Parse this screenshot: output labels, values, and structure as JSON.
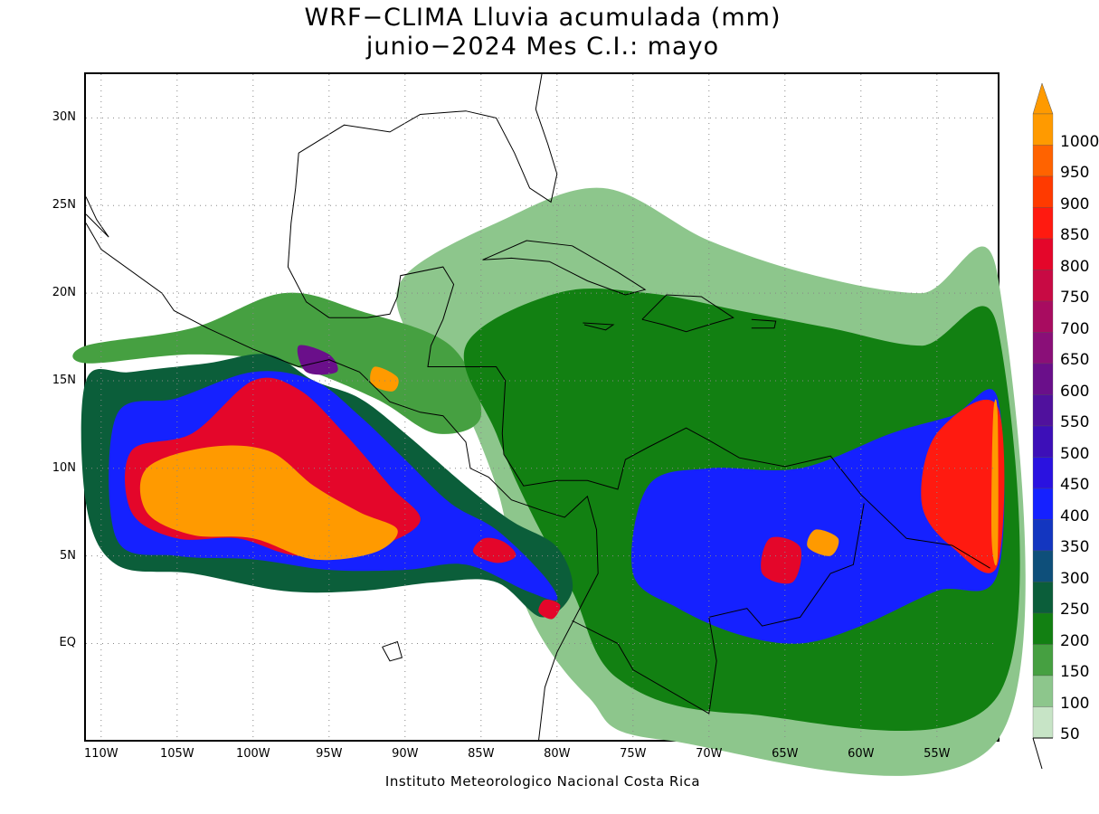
{
  "title": {
    "line1": "WRF−CLIMA Lluvia acumulada (mm)",
    "line2": "junio−2024 Mes C.I.: mayo"
  },
  "credit": "Instituto Meteorologico Nacional Costa Rica",
  "map": {
    "projection": "lat-lon",
    "lon_range": [
      -111,
      -51
    ],
    "lat_range": [
      -5.5,
      32.5
    ],
    "grid": "dotted",
    "lat_ticks": [
      {
        "lat": 30,
        "label": "30N"
      },
      {
        "lat": 25,
        "label": "25N"
      },
      {
        "lat": 20,
        "label": "20N"
      },
      {
        "lat": 15,
        "label": "15N"
      },
      {
        "lat": 10,
        "label": "10N"
      },
      {
        "lat": 5,
        "label": "5N"
      },
      {
        "lat": 0,
        "label": "EQ"
      }
    ],
    "lon_ticks": [
      {
        "lon": -110,
        "label": "110W"
      },
      {
        "lon": -105,
        "label": "105W"
      },
      {
        "lon": -100,
        "label": "100W"
      },
      {
        "lon": -95,
        "label": "95W"
      },
      {
        "lon": -90,
        "label": "90W"
      },
      {
        "lon": -85,
        "label": "85W"
      },
      {
        "lon": -80,
        "label": "80W"
      },
      {
        "lon": -75,
        "label": "75W"
      },
      {
        "lon": -70,
        "label": "70W"
      },
      {
        "lon": -65,
        "label": "65W"
      },
      {
        "lon": -60,
        "label": "60W"
      },
      {
        "lon": -55,
        "label": "55W"
      }
    ]
  },
  "colorbar": {
    "unit": "mm",
    "levels": [
      {
        "label": "50",
        "color": "#c7e4c6"
      },
      {
        "label": "100",
        "color": "#8dc68c"
      },
      {
        "label": "150",
        "color": "#46a041"
      },
      {
        "label": "200",
        "color": "#128012"
      },
      {
        "label": "250",
        "color": "#0b5e3a"
      },
      {
        "label": "300",
        "color": "#0e4f7a"
      },
      {
        "label": "350",
        "color": "#1336c0"
      },
      {
        "label": "400",
        "color": "#1521ff"
      },
      {
        "label": "450",
        "color": "#2a12e0"
      },
      {
        "label": "500",
        "color": "#3d0fb8"
      },
      {
        "label": "550",
        "color": "#50119d"
      },
      {
        "label": "600",
        "color": "#6a0f8a"
      },
      {
        "label": "650",
        "color": "#8a0f78"
      },
      {
        "label": "700",
        "color": "#a80c60"
      },
      {
        "label": "750",
        "color": "#c80a44"
      },
      {
        "label": "800",
        "color": "#e4062a"
      },
      {
        "label": "850",
        "color": "#ff1a10"
      },
      {
        "label": "900",
        "color": "#ff3a00"
      },
      {
        "label": "950",
        "color": "#ff6300"
      },
      {
        "label": "1000",
        "color": "#ff9a00"
      }
    ]
  },
  "rain_fields": [
    {
      "name": "itcz-pacific-outer",
      "level": 4,
      "points": [
        [
          -111,
          15
        ],
        [
          -108,
          15.5
        ],
        [
          -103,
          16
        ],
        [
          -99,
          16.5
        ],
        [
          -96,
          15
        ],
        [
          -93,
          14
        ],
        [
          -90,
          12
        ],
        [
          -86,
          9
        ],
        [
          -83,
          7
        ],
        [
          -80,
          5.5
        ],
        [
          -79,
          3
        ],
        [
          -81,
          1.5
        ],
        [
          -84,
          3.5
        ],
        [
          -88,
          3.5
        ],
        [
          -93,
          3
        ],
        [
          -98,
          3
        ],
        [
          -104,
          4
        ],
        [
          -109,
          4.5
        ],
        [
          -111,
          8
        ]
      ]
    },
    {
      "name": "itcz-pacific-blue",
      "level": 7,
      "points": [
        [
          -109,
          13
        ],
        [
          -105,
          14
        ],
        [
          -100,
          15.5
        ],
        [
          -96,
          15
        ],
        [
          -93,
          13
        ],
        [
          -90,
          10.5
        ],
        [
          -87,
          8
        ],
        [
          -84,
          6.5
        ],
        [
          -81,
          4
        ],
        [
          -80,
          2.5
        ],
        [
          -82,
          3
        ],
        [
          -86,
          4.5
        ],
        [
          -90,
          4.2
        ],
        [
          -95,
          4.2
        ],
        [
          -100,
          4.8
        ],
        [
          -105,
          5
        ],
        [
          -109,
          6
        ]
      ]
    },
    {
      "name": "itcz-pacific-red",
      "level": 15,
      "points": [
        [
          -108,
          11
        ],
        [
          -104,
          12
        ],
        [
          -100,
          15
        ],
        [
          -97,
          14.5
        ],
        [
          -94,
          12
        ],
        [
          -91,
          9
        ],
        [
          -89,
          7
        ],
        [
          -92,
          5.5
        ],
        [
          -97,
          5
        ],
        [
          -101,
          6
        ],
        [
          -105,
          6
        ],
        [
          -108,
          7.5
        ]
      ]
    },
    {
      "name": "itcz-pacific-orange",
      "level": 19,
      "points": [
        [
          -107,
          10
        ],
        [
          -103,
          11.2
        ],
        [
          -99,
          11
        ],
        [
          -96,
          9
        ],
        [
          -93,
          7.5
        ],
        [
          -90.5,
          6.5
        ],
        [
          -92,
          5.2
        ],
        [
          -96,
          4.8
        ],
        [
          -100,
          6
        ],
        [
          -104,
          6.2
        ],
        [
          -107,
          7.5
        ]
      ]
    },
    {
      "name": "costa-rica-blob",
      "level": 15,
      "points": [
        [
          -84.8,
          6
        ],
        [
          -83.5,
          5.8
        ],
        [
          -82.7,
          5
        ],
        [
          -84,
          4.6
        ],
        [
          -85.5,
          5.2
        ]
      ]
    },
    {
      "name": "panama-blob",
      "level": 15,
      "points": [
        [
          -80.8,
          2.5
        ],
        [
          -79.8,
          2.2
        ],
        [
          -80.3,
          1.4
        ],
        [
          -81.2,
          1.8
        ]
      ]
    },
    {
      "name": "guatemala-coast-blob",
      "level": 19,
      "points": [
        [
          -92,
          15.8
        ],
        [
          -90.5,
          15.2
        ],
        [
          -90.8,
          14.4
        ],
        [
          -92.2,
          14.8
        ]
      ]
    },
    {
      "name": "mexico-south-blob",
      "level": 11,
      "points": [
        [
          -97,
          17
        ],
        [
          -95,
          16.5
        ],
        [
          -94.5,
          15.5
        ],
        [
          -96.5,
          15.5
        ]
      ]
    },
    {
      "name": "caribbean-broad-green",
      "level": 1,
      "points": [
        [
          -90,
          21
        ],
        [
          -84,
          24
        ],
        [
          -77,
          26
        ],
        [
          -70,
          23
        ],
        [
          -63,
          21
        ],
        [
          -56,
          20
        ],
        [
          -51,
          21
        ],
        [
          -51,
          -5.5
        ],
        [
          -73,
          -5.5
        ],
        [
          -78,
          -3
        ],
        [
          -82,
          2
        ],
        [
          -84,
          9
        ],
        [
          -87,
          15
        ],
        [
          -90,
          18
        ]
      ]
    },
    {
      "name": "caribbean-mid-green",
      "level": 3,
      "points": [
        [
          -86,
          17
        ],
        [
          -80,
          20
        ],
        [
          -74,
          20
        ],
        [
          -68,
          19
        ],
        [
          -62,
          18
        ],
        [
          -56,
          17
        ],
        [
          -51,
          18
        ],
        [
          -51,
          -3
        ],
        [
          -68,
          -4
        ],
        [
          -76,
          -2
        ],
        [
          -79,
          3
        ],
        [
          -82,
          8
        ],
        [
          -84,
          12
        ]
      ]
    },
    {
      "name": "south-america-blue",
      "level": 7,
      "points": [
        [
          -74,
          9
        ],
        [
          -70,
          10
        ],
        [
          -64,
          10
        ],
        [
          -58,
          12
        ],
        [
          -54,
          13
        ],
        [
          -51,
          14
        ],
        [
          -51,
          4
        ],
        [
          -55,
          3
        ],
        [
          -60,
          1
        ],
        [
          -64,
          0
        ],
        [
          -68,
          0.5
        ],
        [
          -72,
          2
        ],
        [
          -75,
          4
        ]
      ]
    },
    {
      "name": "atlantic-itcz-red",
      "level": 16,
      "points": [
        [
          -55,
          12
        ],
        [
          -51,
          13.5
        ],
        [
          -51,
          4.5
        ],
        [
          -54,
          5.5
        ],
        [
          -56,
          8
        ]
      ]
    },
    {
      "name": "atlantic-edge-orange",
      "level": 19,
      "points": [
        [
          -51.3,
          13
        ],
        [
          -51,
          13
        ],
        [
          -51,
          5
        ],
        [
          -51.4,
          6
        ]
      ]
    },
    {
      "name": "venezuela-orange",
      "level": 19,
      "points": [
        [
          -63,
          6.5
        ],
        [
          -61.5,
          6
        ],
        [
          -62,
          5
        ],
        [
          -63.5,
          5.5
        ]
      ]
    },
    {
      "name": "venezuela-red",
      "level": 15,
      "points": [
        [
          -66,
          6
        ],
        [
          -64,
          5.5
        ],
        [
          -64.5,
          3.5
        ],
        [
          -66.5,
          4
        ]
      ]
    },
    {
      "name": "east-pacific-green",
      "level": 2,
      "points": [
        [
          -111,
          17
        ],
        [
          -104,
          18
        ],
        [
          -98,
          20
        ],
        [
          -93,
          19
        ],
        [
          -87,
          17
        ],
        [
          -85,
          13
        ],
        [
          -88,
          12
        ],
        [
          -92,
          14
        ],
        [
          -98,
          16
        ],
        [
          -104,
          16.5
        ],
        [
          -111,
          16
        ]
      ]
    }
  ],
  "coastlines": [
    {
      "name": "mexico-gulf-coast",
      "points": [
        [
          -97.2,
          26
        ],
        [
          -97.5,
          24
        ],
        [
          -97.7,
          21.5
        ],
        [
          -96.5,
          19.5
        ],
        [
          -95,
          18.6
        ],
        [
          -92.5,
          18.6
        ],
        [
          -91,
          18.8
        ],
        [
          -90.5,
          19.8
        ],
        [
          -90.3,
          21
        ],
        [
          -87.5,
          21.5
        ],
        [
          -86.8,
          20.5
        ],
        [
          -87.5,
          18.5
        ],
        [
          -88.3,
          17
        ],
        [
          -88.5,
          15.8
        ],
        [
          -87,
          15.8
        ],
        [
          -84,
          15.8
        ],
        [
          -83.4,
          15
        ],
        [
          -83.6,
          12
        ],
        [
          -83.5,
          10.8
        ],
        [
          -82.2,
          9
        ],
        [
          -80,
          9.3
        ],
        [
          -78,
          9.3
        ],
        [
          -76,
          8.8
        ],
        [
          -75.5,
          10.5
        ],
        [
          -74,
          11.2
        ],
        [
          -71.5,
          12.3
        ],
        [
          -70,
          11.6
        ],
        [
          -68,
          10.6
        ],
        [
          -65,
          10.1
        ],
        [
          -62,
          10.7
        ],
        [
          -60,
          8.5
        ],
        [
          -57,
          6
        ],
        [
          -54,
          5.6
        ],
        [
          -51.5,
          4.3
        ]
      ]
    },
    {
      "name": "pacific-coast",
      "points": [
        [
          -111,
          24
        ],
        [
          -110,
          22.5
        ],
        [
          -106,
          20
        ],
        [
          -105.2,
          19
        ],
        [
          -103,
          18
        ],
        [
          -100,
          16.8
        ],
        [
          -97,
          15.8
        ],
        [
          -95,
          16.2
        ],
        [
          -93,
          15.5
        ],
        [
          -91,
          13.8
        ],
        [
          -89,
          13.2
        ],
        [
          -87.5,
          13
        ],
        [
          -86,
          11.5
        ],
        [
          -85.7,
          10
        ],
        [
          -84.5,
          9.5
        ],
        [
          -83,
          8.2
        ],
        [
          -81,
          7.6
        ],
        [
          -79.5,
          7.2
        ],
        [
          -78,
          8.4
        ],
        [
          -77.4,
          6.5
        ],
        [
          -77.3,
          4
        ],
        [
          -78.8,
          1.5
        ],
        [
          -80,
          -0.5
        ],
        [
          -80.8,
          -2.5
        ],
        [
          -81.2,
          -5.5
        ]
      ]
    },
    {
      "name": "us-gulf-coast",
      "points": [
        [
          -97.2,
          26
        ],
        [
          -97,
          28
        ],
        [
          -94,
          29.6
        ],
        [
          -91,
          29.2
        ],
        [
          -89,
          30.2
        ],
        [
          -86,
          30.4
        ],
        [
          -84,
          30
        ],
        [
          -82.8,
          28
        ],
        [
          -81.8,
          26
        ],
        [
          -80.4,
          25.2
        ],
        [
          -80,
          26.8
        ],
        [
          -80.6,
          28.5
        ],
        [
          -81.4,
          30.5
        ],
        [
          -81,
          32.5
        ]
      ]
    },
    {
      "name": "baja-california",
      "points": [
        [
          -111,
          24.5
        ],
        [
          -109.5,
          23.2
        ],
        [
          -110.3,
          24.2
        ],
        [
          -111,
          25.5
        ]
      ]
    },
    {
      "name": "cuba",
      "points": [
        [
          -84.9,
          21.9
        ],
        [
          -82,
          23
        ],
        [
          -79,
          22.7
        ],
        [
          -76,
          21.2
        ],
        [
          -74.2,
          20.2
        ],
        [
          -75.5,
          19.9
        ],
        [
          -78,
          20.7
        ],
        [
          -80.5,
          21.8
        ],
        [
          -83,
          22
        ],
        [
          -84.9,
          21.9
        ]
      ]
    },
    {
      "name": "hispaniola",
      "points": [
        [
          -74.4,
          18.5
        ],
        [
          -72.8,
          19.9
        ],
        [
          -70.5,
          19.8
        ],
        [
          -68.4,
          18.6
        ],
        [
          -70,
          18.2
        ],
        [
          -71.5,
          17.8
        ],
        [
          -73,
          18.2
        ],
        [
          -74.4,
          18.5
        ]
      ]
    },
    {
      "name": "jamaica",
      "points": [
        [
          -78.3,
          18.3
        ],
        [
          -76.3,
          18.2
        ],
        [
          -76.8,
          17.9
        ],
        [
          -78.2,
          18.2
        ]
      ]
    },
    {
      "name": "puerto-rico",
      "points": [
        [
          -67.2,
          18.5
        ],
        [
          -65.6,
          18.4
        ],
        [
          -65.7,
          18
        ],
        [
          -67.2,
          18
        ]
      ]
    },
    {
      "name": "galapagos",
      "points": [
        [
          -91.5,
          -0.2
        ],
        [
          -90.5,
          0.1
        ],
        [
          -90.2,
          -0.8
        ],
        [
          -91,
          -1
        ],
        [
          -91.5,
          -0.2
        ]
      ]
    },
    {
      "name": "south-america-border",
      "points": [
        [
          -79,
          1.3
        ],
        [
          -76,
          0
        ],
        [
          -75,
          -1.5
        ],
        [
          -73,
          -2.5
        ],
        [
          -70,
          -4
        ],
        [
          -69.5,
          -1
        ],
        [
          -70,
          1.5
        ],
        [
          -67.5,
          2
        ],
        [
          -66.5,
          1
        ],
        [
          -64,
          1.5
        ],
        [
          -62,
          4
        ],
        [
          -60.5,
          4.5
        ],
        [
          -59.8,
          8
        ]
      ]
    }
  ]
}
